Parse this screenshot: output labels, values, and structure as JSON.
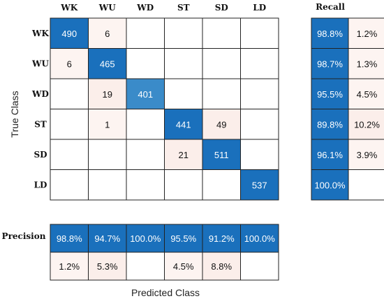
{
  "chart_data": {
    "type": "heatmap",
    "categories": [
      "WK",
      "WU",
      "WD",
      "ST",
      "SD",
      "LD"
    ],
    "matrix": [
      [
        490,
        6,
        null,
        null,
        null,
        null
      ],
      [
        6,
        465,
        null,
        null,
        null,
        null
      ],
      [
        null,
        19,
        401,
        null,
        null,
        null
      ],
      [
        null,
        1,
        null,
        441,
        49,
        null
      ],
      [
        null,
        null,
        null,
        21,
        511,
        null
      ],
      [
        null,
        null,
        null,
        null,
        null,
        537
      ]
    ],
    "recall_title": "Recall",
    "recall": [
      [
        "98.8%",
        "1.2%"
      ],
      [
        "98.7%",
        "1.3%"
      ],
      [
        "95.5%",
        "4.5%"
      ],
      [
        "89.8%",
        "10.2%"
      ],
      [
        "96.1%",
        "3.9%"
      ],
      [
        "100.0%",
        ""
      ]
    ],
    "precision_title": "Precision",
    "precision": [
      [
        "98.8%",
        "94.7%",
        "100.0%",
        "95.5%",
        "91.2%",
        "100.0%"
      ],
      [
        "1.2%",
        "5.3%",
        "",
        "4.5%",
        "8.8%",
        ""
      ]
    ],
    "xlabel": "Predicted Class",
    "ylabel": "True Class",
    "colors": {
      "strong": "#1a70bc",
      "medium": "#3a8bc9",
      "light": "#fbeeea",
      "pale": "#fdf4f1",
      "grid": "#222222",
      "empty": "#ffffff"
    }
  }
}
